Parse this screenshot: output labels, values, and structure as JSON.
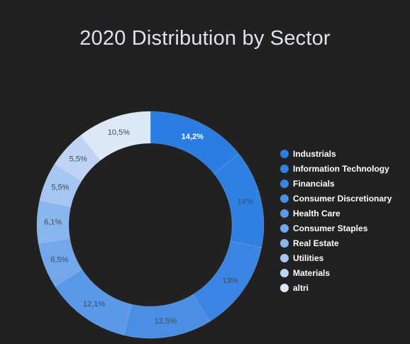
{
  "chart_data": {
    "type": "pie",
    "title": "2020 Distribution by Sector",
    "categories": [
      "Industrials",
      "Information Technology",
      "Financials",
      "Consumer Discretionary",
      "Health Care",
      "Consumer Staples",
      "Real Estate",
      "Utilities",
      "Materials",
      "altri"
    ],
    "values": [
      14.2,
      14,
      13,
      12.5,
      12.1,
      6.5,
      6.1,
      5.5,
      5.5,
      10.5
    ],
    "value_labels": [
      "14,2%",
      "14%",
      "13%",
      "12,5%",
      "12,1%",
      "6,5%",
      "6,1%",
      "5,5%",
      "5,5%",
      "10,5%"
    ],
    "colors": [
      "#2a7de1",
      "#2f80e3",
      "#3a85e4",
      "#4a8ee6",
      "#5a98e8",
      "#73a7eb",
      "#8ab6ee",
      "#a6c6f2",
      "#bfd4f4",
      "#dfe8f8"
    ],
    "donut": true,
    "legend_position": "right"
  }
}
